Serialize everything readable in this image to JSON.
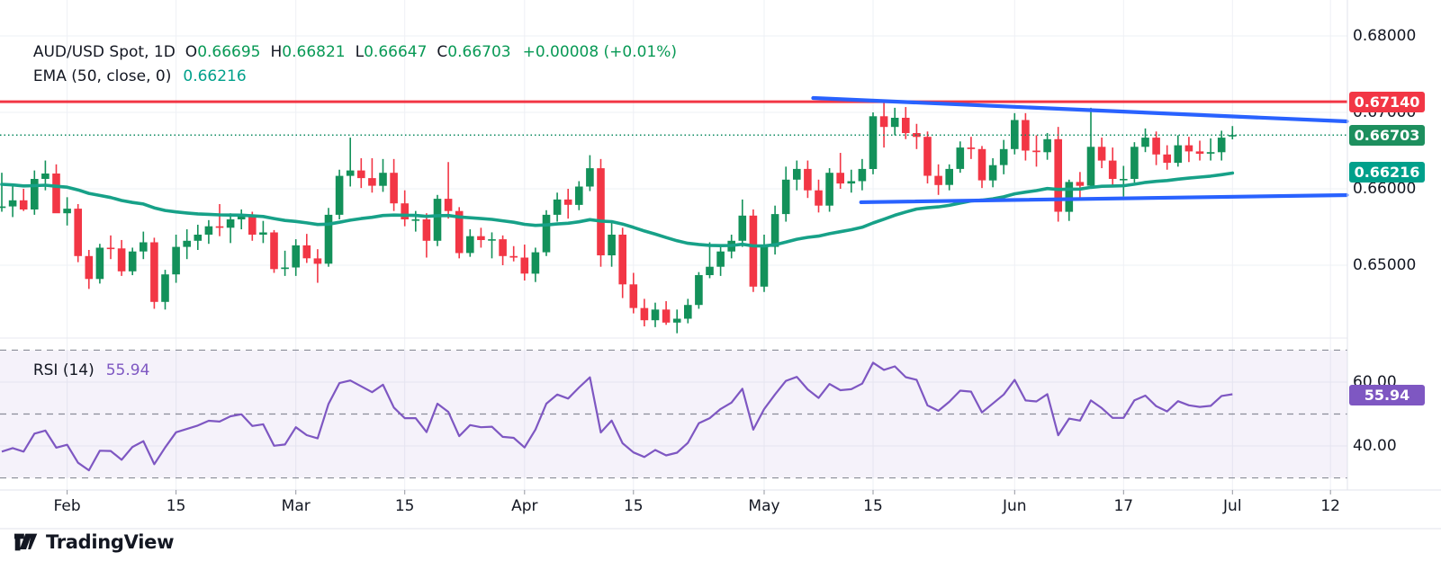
{
  "legend": {
    "symbol": "AUD/USD Spot, 1D",
    "o_label": "O",
    "o": "0.66695",
    "h_label": "H",
    "h": "0.66821",
    "l_label": "L",
    "l": "0.66647",
    "c_label": "C",
    "c": "0.66703",
    "change": "+0.00008 (+0.01%)",
    "ema_label": "EMA (50, close, 0)",
    "ema_value": "0.66216",
    "rsi_label": "RSI (14)",
    "rsi_value": "55.94"
  },
  "badges": {
    "resistance": "0.67140",
    "last_price": "0.66703",
    "ema": "0.66216",
    "rsi": "55.94"
  },
  "logo": {
    "text": "TradingView"
  },
  "colors": {
    "up": "#13915a",
    "down": "#f23645",
    "ema": "#17a188",
    "trendline": "#2962ff",
    "resistance": "#f23645",
    "last_price_dotted": "#0b8a5f",
    "rsi": "#7e57c2",
    "rsi_band_fill": "#7e57c2",
    "badge_resistance_bg": "#f23645",
    "badge_last_bg": "#1d8f5e",
    "badge_ema_bg": "#00a08b",
    "badge_rsi_bg": "#7e57c2",
    "grid": "#eef0f5",
    "axis_border": "#e0e3eb",
    "dashed_band": "#6f7380",
    "text": "#131722"
  },
  "price_axis": {
    "ticks": [
      {
        "label": "0.68000",
        "value": 0.68
      },
      {
        "label": "0.67000",
        "value": 0.67
      },
      {
        "label": "0.66000",
        "value": 0.66
      },
      {
        "label": "0.65000",
        "value": 0.65
      }
    ]
  },
  "rsi_axis": {
    "ticks": [
      {
        "label": "60.00",
        "value": 60
      },
      {
        "label": "40.00",
        "value": 40
      }
    ]
  },
  "time_axis": {
    "ticks": [
      {
        "label": "Feb",
        "index": 6
      },
      {
        "label": "15",
        "index": 16
      },
      {
        "label": "Mar",
        "index": 27
      },
      {
        "label": "15",
        "index": 37
      },
      {
        "label": "Apr",
        "index": 48
      },
      {
        "label": "15",
        "index": 58
      },
      {
        "label": "May",
        "index": 70
      },
      {
        "label": "15",
        "index": 80
      },
      {
        "label": "Jun",
        "index": 93
      },
      {
        "label": "17",
        "index": 103
      },
      {
        "label": "Jul",
        "index": 113
      },
      {
        "label": "12",
        "index": 122
      }
    ]
  },
  "chart_data": {
    "type": "candlestick",
    "symbol": "AUD/USD Spot",
    "timeframe": "1D",
    "last_bar": {
      "open": 0.66695,
      "high": 0.66821,
      "low": 0.66647,
      "close": 0.66703,
      "change": 8e-05,
      "change_pct": 0.01
    },
    "price_range_visible": [
      0.6411,
      0.682
    ],
    "levels": {
      "resistance": 0.6714,
      "last_price": 0.66703
    },
    "ema": {
      "period": 50,
      "source": "close",
      "offset": 0,
      "last_value": 0.66216,
      "seed": 0.6607,
      "alpha": 0.0392
    },
    "rsi": {
      "period": 14,
      "current": 55.94,
      "bands": [
        70,
        50,
        30
      ],
      "seed_avg_gain": 0.0013,
      "seed_avg_loss": 0.0021
    },
    "trendlines": [
      {
        "name": "upper-converging",
        "from": {
          "index": 74.5,
          "price": 0.67188
        },
        "to": {
          "index": 123.5,
          "price": 0.66882
        }
      },
      {
        "name": "lower-converging",
        "from": {
          "index": 78.9,
          "price": 0.65824
        },
        "to": {
          "index": 123.5,
          "price": 0.65918
        }
      }
    ],
    "candles": [
      [
        0.6575,
        0.6621,
        0.657,
        0.6577
      ],
      [
        0.6577,
        0.6604,
        0.6563,
        0.6585
      ],
      [
        0.6585,
        0.66,
        0.6571,
        0.6573
      ],
      [
        0.6573,
        0.6624,
        0.6566,
        0.6613
      ],
      [
        0.6613,
        0.6637,
        0.6598,
        0.662
      ],
      [
        0.662,
        0.6632,
        0.6586,
        0.6568
      ],
      [
        0.6568,
        0.6589,
        0.6552,
        0.6574
      ],
      [
        0.6574,
        0.658,
        0.6504,
        0.6512
      ],
      [
        0.6512,
        0.652,
        0.6469,
        0.6482
      ],
      [
        0.6482,
        0.6528,
        0.6476,
        0.6523
      ],
      [
        0.6523,
        0.6539,
        0.6508,
        0.6522
      ],
      [
        0.6522,
        0.6533,
        0.6486,
        0.6492
      ],
      [
        0.6492,
        0.6523,
        0.6487,
        0.6518
      ],
      [
        0.6518,
        0.6544,
        0.6508,
        0.653
      ],
      [
        0.653,
        0.6536,
        0.6443,
        0.6452
      ],
      [
        0.6452,
        0.6494,
        0.6442,
        0.6488
      ],
      [
        0.6488,
        0.654,
        0.6477,
        0.6524
      ],
      [
        0.6524,
        0.6547,
        0.6508,
        0.6532
      ],
      [
        0.6532,
        0.6553,
        0.652,
        0.654
      ],
      [
        0.654,
        0.6559,
        0.6528,
        0.6551
      ],
      [
        0.6551,
        0.658,
        0.6538,
        0.6549
      ],
      [
        0.6549,
        0.6568,
        0.6529,
        0.656
      ],
      [
        0.656,
        0.6573,
        0.6547,
        0.6564
      ],
      [
        0.6564,
        0.657,
        0.6532,
        0.654
      ],
      [
        0.654,
        0.6558,
        0.6529,
        0.6543
      ],
      [
        0.6543,
        0.6546,
        0.649,
        0.6495
      ],
      [
        0.6495,
        0.6519,
        0.6486,
        0.6497
      ],
      [
        0.6497,
        0.6534,
        0.6486,
        0.6526
      ],
      [
        0.6526,
        0.6541,
        0.6503,
        0.6509
      ],
      [
        0.6509,
        0.6521,
        0.6477,
        0.6502
      ],
      [
        0.6502,
        0.6575,
        0.6498,
        0.6566
      ],
      [
        0.6566,
        0.6625,
        0.656,
        0.6617
      ],
      [
        0.6617,
        0.6667,
        0.6603,
        0.6624
      ],
      [
        0.6624,
        0.664,
        0.6601,
        0.6614
      ],
      [
        0.6614,
        0.664,
        0.6595,
        0.6604
      ],
      [
        0.6604,
        0.6639,
        0.6596,
        0.6621
      ],
      [
        0.6621,
        0.6639,
        0.6571,
        0.6581
      ],
      [
        0.6581,
        0.6598,
        0.6551,
        0.656
      ],
      [
        0.656,
        0.6571,
        0.6544,
        0.656
      ],
      [
        0.656,
        0.6568,
        0.651,
        0.6532
      ],
      [
        0.6532,
        0.6592,
        0.6525,
        0.6587
      ],
      [
        0.6587,
        0.6635,
        0.6561,
        0.6571
      ],
      [
        0.6571,
        0.6576,
        0.6509,
        0.6516
      ],
      [
        0.6516,
        0.6547,
        0.6511,
        0.6538
      ],
      [
        0.6538,
        0.6549,
        0.6523,
        0.6533
      ],
      [
        0.6533,
        0.6543,
        0.6509,
        0.6534
      ],
      [
        0.6534,
        0.6539,
        0.65,
        0.6512
      ],
      [
        0.6512,
        0.6525,
        0.6505,
        0.651
      ],
      [
        0.651,
        0.6527,
        0.648,
        0.6489
      ],
      [
        0.6489,
        0.6523,
        0.6478,
        0.6517
      ],
      [
        0.6517,
        0.6572,
        0.6512,
        0.6566
      ],
      [
        0.6566,
        0.6595,
        0.6557,
        0.6586
      ],
      [
        0.6586,
        0.66,
        0.6561,
        0.6579
      ],
      [
        0.6579,
        0.661,
        0.6572,
        0.6603
      ],
      [
        0.6603,
        0.6644,
        0.6597,
        0.6627
      ],
      [
        0.6627,
        0.6639,
        0.6498,
        0.6513
      ],
      [
        0.6513,
        0.6556,
        0.6498,
        0.654
      ],
      [
        0.654,
        0.6549,
        0.6457,
        0.6475
      ],
      [
        0.6475,
        0.649,
        0.6437,
        0.6444
      ],
      [
        0.6444,
        0.6456,
        0.642,
        0.6428
      ],
      [
        0.6428,
        0.6451,
        0.6419,
        0.6442
      ],
      [
        0.6442,
        0.6453,
        0.6422,
        0.6425
      ],
      [
        0.6425,
        0.6442,
        0.6411,
        0.643
      ],
      [
        0.643,
        0.6456,
        0.6424,
        0.6448
      ],
      [
        0.6448,
        0.6491,
        0.6443,
        0.6487
      ],
      [
        0.6487,
        0.653,
        0.6483,
        0.6498
      ],
      [
        0.6498,
        0.6524,
        0.6486,
        0.6518
      ],
      [
        0.6518,
        0.654,
        0.6509,
        0.6532
      ],
      [
        0.6532,
        0.6586,
        0.6524,
        0.6565
      ],
      [
        0.6565,
        0.6573,
        0.6465,
        0.6472
      ],
      [
        0.6472,
        0.654,
        0.6465,
        0.6524
      ],
      [
        0.6524,
        0.6578,
        0.6514,
        0.6567
      ],
      [
        0.6567,
        0.6629,
        0.6557,
        0.6612
      ],
      [
        0.6612,
        0.6637,
        0.6598,
        0.6626
      ],
      [
        0.6626,
        0.6637,
        0.6588,
        0.6598
      ],
      [
        0.6598,
        0.6612,
        0.6569,
        0.6578
      ],
      [
        0.6578,
        0.6627,
        0.657,
        0.6621
      ],
      [
        0.6621,
        0.6647,
        0.66,
        0.6607
      ],
      [
        0.6607,
        0.6625,
        0.6595,
        0.661
      ],
      [
        0.661,
        0.6639,
        0.6598,
        0.6626
      ],
      [
        0.6626,
        0.67,
        0.6619,
        0.6695
      ],
      [
        0.6695,
        0.6714,
        0.6654,
        0.6681
      ],
      [
        0.6681,
        0.6706,
        0.667,
        0.6693
      ],
      [
        0.6693,
        0.6707,
        0.6665,
        0.6673
      ],
      [
        0.6673,
        0.6685,
        0.6652,
        0.6668
      ],
      [
        0.6668,
        0.6675,
        0.6607,
        0.6617
      ],
      [
        0.6617,
        0.6632,
        0.6592,
        0.6605
      ],
      [
        0.6605,
        0.6632,
        0.6598,
        0.6626
      ],
      [
        0.6626,
        0.6662,
        0.6621,
        0.6654
      ],
      [
        0.6654,
        0.6668,
        0.6639,
        0.6652
      ],
      [
        0.6652,
        0.6656,
        0.6601,
        0.6611
      ],
      [
        0.6611,
        0.664,
        0.6602,
        0.6631
      ],
      [
        0.6631,
        0.6664,
        0.6619,
        0.6652
      ],
      [
        0.6652,
        0.6699,
        0.6645,
        0.669
      ],
      [
        0.669,
        0.6699,
        0.6637,
        0.665
      ],
      [
        0.665,
        0.667,
        0.6629,
        0.6648
      ],
      [
        0.6648,
        0.6673,
        0.6638,
        0.6665
      ],
      [
        0.6665,
        0.6681,
        0.6557,
        0.657
      ],
      [
        0.657,
        0.6612,
        0.6558,
        0.6609
      ],
      [
        0.6609,
        0.6622,
        0.6586,
        0.6604
      ],
      [
        0.6604,
        0.6706,
        0.66,
        0.6655
      ],
      [
        0.6655,
        0.6667,
        0.6627,
        0.6637
      ],
      [
        0.6637,
        0.6654,
        0.6604,
        0.6613
      ],
      [
        0.6613,
        0.663,
        0.659,
        0.6613
      ],
      [
        0.6613,
        0.6661,
        0.6608,
        0.6655
      ],
      [
        0.6655,
        0.6679,
        0.6648,
        0.6667
      ],
      [
        0.6667,
        0.6675,
        0.6631,
        0.6645
      ],
      [
        0.6645,
        0.6657,
        0.6625,
        0.6634
      ],
      [
        0.6634,
        0.667,
        0.6629,
        0.6657
      ],
      [
        0.6657,
        0.6668,
        0.6635,
        0.6649
      ],
      [
        0.6649,
        0.6663,
        0.6637,
        0.6646
      ],
      [
        0.6646,
        0.6666,
        0.6637,
        0.6648
      ],
      [
        0.6648,
        0.6676,
        0.6637,
        0.6667
      ],
      [
        0.66695,
        0.66821,
        0.66647,
        0.66703
      ]
    ]
  }
}
